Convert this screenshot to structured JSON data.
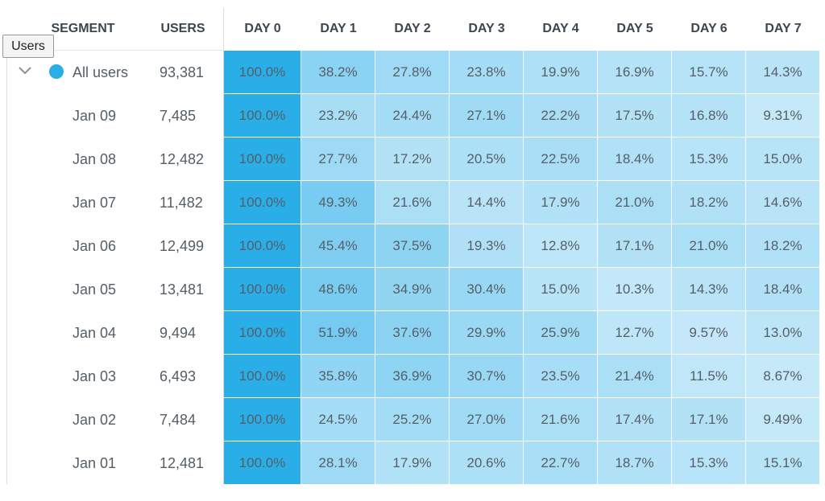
{
  "tooltip": "Users",
  "table": {
    "headers": [
      "SEGMENT",
      "USERS",
      "DAY 0",
      "DAY 1",
      "DAY 2",
      "DAY 3",
      "DAY 4",
      "DAY 5",
      "DAY 6",
      "DAY 7"
    ],
    "rows": [
      [
        "All users",
        "93,381",
        "100.0%",
        "38.2%",
        "27.8%",
        "23.8%",
        "19.9%",
        "16.9%",
        "15.7%",
        "14.3%"
      ],
      [
        "Jan 09",
        "7,485",
        "100.0%",
        "23.2%",
        "24.4%",
        "27.1%",
        "22.2%",
        "17.5%",
        "16.8%",
        "9.31%"
      ],
      [
        "Jan 08",
        "12,482",
        "100.0%",
        "27.7%",
        "17.2%",
        "20.5%",
        "22.5%",
        "18.4%",
        "15.3%",
        "15.0%"
      ],
      [
        "Jan 07",
        "11,482",
        "100.0%",
        "49.3%",
        "21.6%",
        "14.4%",
        "17.9%",
        "21.0%",
        "18.2%",
        "14.6%"
      ],
      [
        "Jan 06",
        "12,499",
        "100.0%",
        "45.4%",
        "37.5%",
        "19.3%",
        "12.8%",
        "17.1%",
        "21.0%",
        "18.2%"
      ],
      [
        "Jan 05",
        "13,481",
        "100.0%",
        "48.6%",
        "34.9%",
        "30.4%",
        "15.0%",
        "10.3%",
        "14.3%",
        "18.4%"
      ],
      [
        "Jan 04",
        "9,494",
        "100.0%",
        "51.9%",
        "37.6%",
        "29.9%",
        "25.9%",
        "12.7%",
        "9.57%",
        "13.0%"
      ],
      [
        "Jan 03",
        "6,493",
        "100.0%",
        "35.8%",
        "36.9%",
        "30.7%",
        "23.5%",
        "21.4%",
        "11.5%",
        "8.67%"
      ],
      [
        "Jan 02",
        "7,484",
        "100.0%",
        "24.5%",
        "25.2%",
        "27.0%",
        "21.6%",
        "17.4%",
        "17.1%",
        "9.49%"
      ],
      [
        "Jan 01",
        "12,481",
        "100.0%",
        "28.1%",
        "17.9%",
        "20.6%",
        "22.7%",
        "18.7%",
        "15.3%",
        "15.1%"
      ]
    ]
  }
}
